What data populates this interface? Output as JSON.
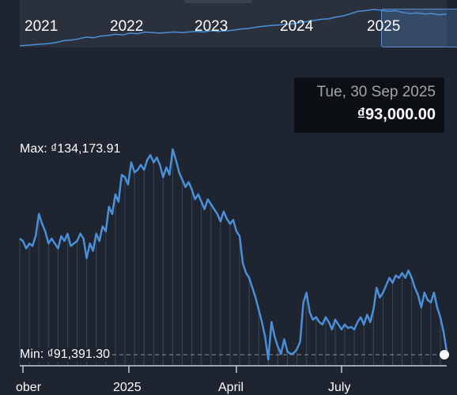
{
  "navigator": {
    "years": [
      "2021",
      "2022",
      "2023",
      "2024",
      "2025"
    ],
    "selected_year": "2025"
  },
  "tooltip": {
    "date": "Tue, 30 Sep 2025",
    "value": "₫93,000.00"
  },
  "chart_data": {
    "type": "line",
    "max_label": "Max: ₫134,173.91",
    "min_label": "Min: ₫91,391.30",
    "x_tick_labels": [
      "ober",
      "2025",
      "April",
      "July"
    ],
    "ylim": [
      91391.3,
      134173.91
    ],
    "series": [
      {
        "values": [
          116000,
          115500,
          114000,
          115000,
          114500,
          116500,
          121000,
          119000,
          117500,
          115000,
          116000,
          115000,
          114000,
          116500,
          115500,
          117000,
          114500,
          115000,
          115500,
          117000,
          116000,
          112000,
          115000,
          113500,
          117000,
          115500,
          118500,
          117500,
          122500,
          121000,
          125000,
          123500,
          129000,
          128500,
          127000,
          131500,
          129500,
          130000,
          131000,
          130000,
          132000,
          133000,
          131500,
          132500,
          131000,
          128500,
          130500,
          129000,
          134173.91,
          132000,
          129500,
          128000,
          126500,
          127500,
          126000,
          124000,
          125000,
          123500,
          122000,
          124000,
          123000,
          122000,
          121000,
          119500,
          121500,
          120000,
          119000,
          119800,
          117500,
          116500,
          111000,
          109000,
          108000,
          106000,
          104000,
          101500,
          99000,
          96000,
          91391.3,
          99000,
          96000,
          94000,
          92500,
          95500,
          93000,
          92500,
          92700,
          93500,
          95000,
          103000,
          105000,
          101000,
          99500,
          100000,
          99000,
          98500,
          100000,
          99000,
          97500,
          99500,
          98500,
          97500,
          98500,
          97800,
          98000,
          97500,
          99000,
          100000,
          98500,
          100500,
          99000,
          101500,
          106000,
          104000,
          105000,
          106500,
          108000,
          107000,
          108500,
          108000,
          109000,
          108000,
          109500,
          108000,
          106000,
          104500,
          102000,
          105000,
          103500,
          103000,
          105000,
          102000,
          100000,
          97000,
          93000
        ]
      }
    ],
    "navigator_series": [
      10,
      10.5,
      11,
      11.5,
      12,
      13,
      14.5,
      15,
      16,
      17.5,
      17,
      18.5,
      19,
      20,
      19.5,
      21,
      20.5,
      22,
      21.5,
      21,
      21.5,
      22,
      21.5,
      22,
      22.5,
      22,
      23,
      22.5,
      23,
      23.5,
      24.5,
      25,
      26,
      27,
      27.5,
      28,
      28.5,
      29,
      30,
      31,
      32,
      33,
      33.5,
      35,
      36,
      38,
      40,
      40.5,
      41.5,
      41,
      40,
      40.5,
      39,
      38,
      38.5,
      37.5,
      38,
      37,
      37.5
    ],
    "grid": false
  },
  "colors": {
    "background": "#1e2430",
    "navigator_bg": "#2a313d",
    "line": "#4a90d9",
    "tooltip_bg": "#0c0f14",
    "tooltip_date": "#a0a4ab"
  }
}
